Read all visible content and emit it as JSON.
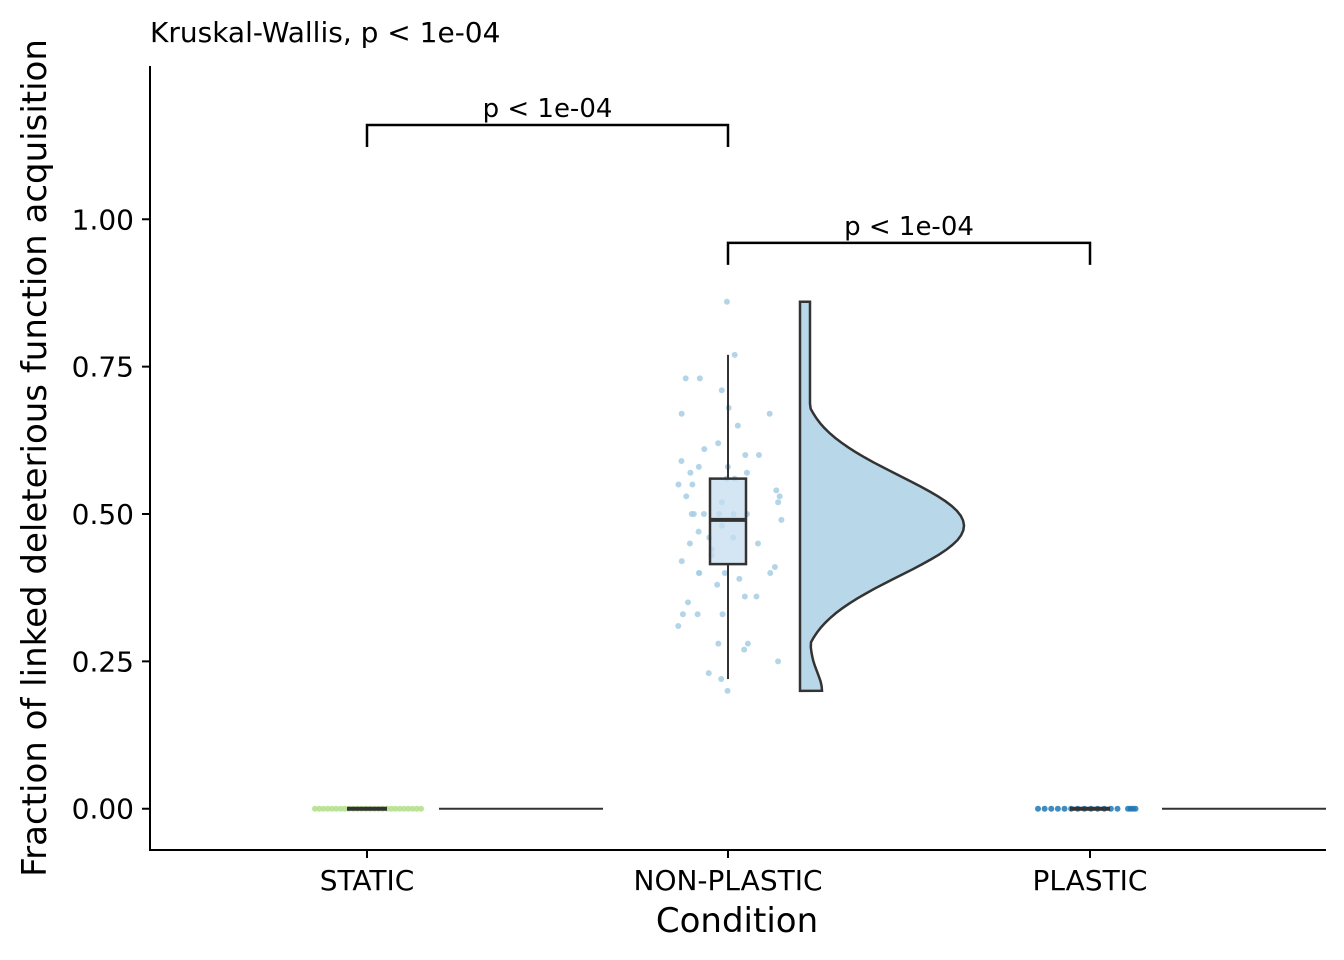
{
  "chart_data": {
    "type": "raincloud",
    "title": "Kruskal-Wallis, p < 1e-04",
    "xlabel": "Condition",
    "ylabel": "Fraction of linked deleterious function acquisition",
    "categories": [
      "STATIC",
      "NON-PLASTIC",
      "PLASTIC"
    ],
    "ylim": [
      -0.07,
      1.26
    ],
    "yticks": [
      0.0,
      0.25,
      0.5,
      0.75,
      1.0
    ],
    "ytick_labels": [
      "0.00",
      "0.25",
      "0.50",
      "0.75",
      "1.00"
    ],
    "grid": false,
    "legend": "none",
    "colors": {
      "STATIC": "#b2df8a",
      "NON-PLASTIC": "#a6cee3",
      "PLASTIC": "#1f78b4",
      "violin_fill": "#b8d8ea",
      "box_fill": "#c5def0",
      "outline": "#333333"
    },
    "groups": [
      {
        "name": "STATIC",
        "box": {
          "min": 0.0,
          "q1": 0.0,
          "median": 0.0,
          "q3": 0.0,
          "max": 0.0
        },
        "points": [
          0,
          0,
          0,
          0,
          0,
          0,
          0,
          0,
          0,
          0,
          0,
          0,
          0,
          0,
          0,
          0,
          0,
          0,
          0,
          0,
          0,
          0,
          0,
          0,
          0,
          0
        ]
      },
      {
        "name": "NON-PLASTIC",
        "box": {
          "min": 0.22,
          "q1": 0.415,
          "median": 0.49,
          "q3": 0.56,
          "max": 0.77
        },
        "violin_range": [
          0.2,
          0.86
        ],
        "density_peak": 0.48,
        "points": [
          0.86,
          0.77,
          0.73,
          0.73,
          0.71,
          0.68,
          0.67,
          0.67,
          0.65,
          0.62,
          0.61,
          0.6,
          0.6,
          0.59,
          0.58,
          0.58,
          0.57,
          0.57,
          0.56,
          0.56,
          0.55,
          0.55,
          0.54,
          0.53,
          0.53,
          0.52,
          0.52,
          0.5,
          0.5,
          0.5,
          0.5,
          0.5,
          0.5,
          0.49,
          0.48,
          0.47,
          0.46,
          0.46,
          0.45,
          0.45,
          0.44,
          0.43,
          0.42,
          0.41,
          0.4,
          0.4,
          0.4,
          0.4,
          0.39,
          0.38,
          0.36,
          0.36,
          0.35,
          0.33,
          0.33,
          0.33,
          0.31,
          0.28,
          0.28,
          0.27,
          0.25,
          0.23,
          0.22,
          0.2
        ]
      },
      {
        "name": "PLASTIC",
        "box": {
          "min": 0.0,
          "q1": 0.0,
          "median": 0.0,
          "q3": 0.0,
          "max": 0.0
        },
        "points": [
          0,
          0,
          0,
          0,
          0,
          0,
          0,
          0,
          0,
          0,
          0,
          0,
          0,
          0,
          0,
          0,
          0
        ]
      }
    ],
    "comparisons": [
      {
        "from": "STATIC",
        "to": "NON-PLASTIC",
        "label": "p < 1e-04",
        "y": 1.16
      },
      {
        "from": "NON-PLASTIC",
        "to": "PLASTIC",
        "label": "p < 1e-04",
        "y": 0.96
      }
    ]
  }
}
